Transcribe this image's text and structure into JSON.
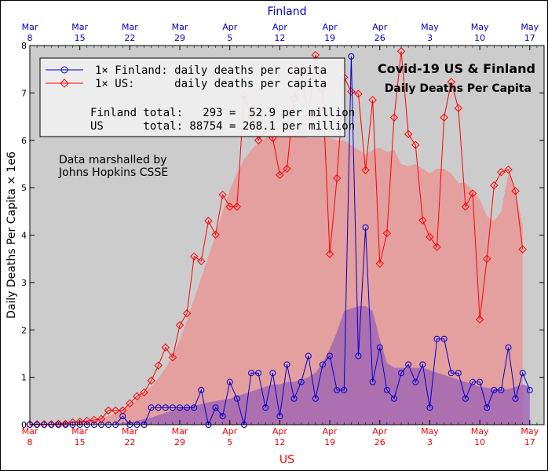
{
  "chart_data": {
    "type": "line",
    "title": "Covid-19 US & Finland",
    "subtitle": "Daily Deaths Per Capita",
    "ylabel": "Daily Deaths Per Capita × 1e6",
    "xlabel_bottom": "US",
    "xlabel_top": "Finland",
    "ylim": [
      0,
      8
    ],
    "yticks": [
      0,
      1,
      2,
      3,
      4,
      5,
      6,
      7,
      8
    ],
    "x_domain": [
      "2020-03-08",
      "2020-05-19"
    ],
    "xticks": [
      {
        "month": "Mar",
        "day": "8",
        "date": "2020-03-08"
      },
      {
        "month": "Mar",
        "day": "15",
        "date": "2020-03-15"
      },
      {
        "month": "Mar",
        "day": "22",
        "date": "2020-03-22"
      },
      {
        "month": "Mar",
        "day": "29",
        "date": "2020-03-29"
      },
      {
        "month": "Apr",
        "day": "5",
        "date": "2020-04-05"
      },
      {
        "month": "Apr",
        "day": "12",
        "date": "2020-04-12"
      },
      {
        "month": "Apr",
        "day": "19",
        "date": "2020-04-19"
      },
      {
        "month": "Apr",
        "day": "26",
        "date": "2020-04-26"
      },
      {
        "month": "May",
        "day": "3",
        "date": "2020-05-03"
      },
      {
        "month": "May",
        "day": "10",
        "date": "2020-05-10"
      },
      {
        "month": "May",
        "day": "17",
        "date": "2020-05-17"
      }
    ],
    "grid": false,
    "legend_position": "top-left",
    "legend": [
      {
        "label": "1× Finland: daily deaths per capita",
        "color": "#0000cc",
        "marker": "circle"
      },
      {
        "label": "1× US:      daily deaths per capita",
        "color": "#ff0000",
        "marker": "diamond"
      }
    ],
    "totals": [
      "Finland total:   293 =  52.9 per million",
      "US      total: 88754 = 268.1 per million"
    ],
    "annotation": [
      "Data marshalled by",
      "Johns Hopkins CSSE"
    ],
    "series": [
      {
        "country": "Finland",
        "color": "#0000cc",
        "start_date": "2020-03-08",
        "values": [
          0,
          0,
          0,
          0,
          0,
          0,
          0,
          0,
          0,
          0,
          0,
          0,
          0,
          0.18,
          0,
          0,
          0,
          0.36,
          0.36,
          0.36,
          0.36,
          0.36,
          0.36,
          0.36,
          0.73,
          0,
          0.36,
          0.18,
          0.9,
          0.55,
          0,
          1.09,
          1.09,
          0.36,
          1.09,
          0.18,
          1.27,
          0.55,
          0.9,
          1.45,
          0.55,
          1.27,
          1.45,
          0.73,
          0.73,
          7.77,
          1.45,
          4.16,
          0.9,
          1.63,
          0.73,
          0.55,
          1.09,
          1.27,
          0.9,
          1.27,
          0.36,
          1.81,
          1.81,
          1.09,
          1.09,
          0.55,
          0.9,
          0.9,
          0.36,
          0.73,
          0.73,
          1.63,
          0.55,
          1.09,
          0.73
        ]
      },
      {
        "country": "US",
        "color": "#ff0000",
        "start_date": "2020-03-08",
        "values": [
          0.01,
          0.01,
          0.01,
          0.01,
          0.02,
          0.02,
          0.05,
          0.06,
          0.08,
          0.1,
          0.12,
          0.3,
          0.3,
          0.3,
          0.45,
          0.6,
          0.68,
          0.93,
          1.25,
          1.63,
          1.42,
          2.1,
          2.35,
          3.55,
          3.45,
          4.3,
          4.01,
          4.85,
          4.6,
          4.6,
          6.95,
          6.5,
          6.0,
          6.25,
          6.05,
          5.27,
          5.4,
          6.88,
          7.45,
          6.5,
          7.8,
          7.08,
          3.6,
          5.2,
          7.33,
          7.03,
          6.98,
          5.37,
          6.85,
          3.4,
          4.04,
          6.48,
          7.88,
          6.13,
          5.9,
          4.31,
          3.96,
          3.75,
          6.48,
          7.23,
          6.68,
          4.6,
          4.88,
          2.22,
          3.5,
          5.05,
          5.33,
          5.38,
          4.93,
          3.7
        ]
      }
    ],
    "bands": [
      {
        "country": "US",
        "fill": "#e79a9a",
        "values": [
          0,
          0,
          0,
          0,
          0,
          0,
          0.02,
          0.04,
          0.06,
          0.09,
          0.13,
          0.18,
          0.25,
          0.33,
          0.42,
          0.53,
          0.66,
          0.81,
          0.98,
          1.2,
          1.45,
          1.8,
          2.2,
          2.65,
          3.1,
          3.55,
          4.0,
          4.5,
          4.95,
          5.3,
          5.6,
          5.8,
          5.95,
          6.05,
          6.1,
          6.1,
          6.12,
          6.1,
          6.08,
          6.05,
          6.05,
          6.05,
          6.05,
          6.0,
          6.0,
          5.9,
          5.8,
          5.7,
          5.8,
          5.85,
          5.75,
          5.8,
          5.5,
          5.45,
          5.5,
          5.4,
          5.3,
          5.4,
          5.4,
          5.3,
          5.1,
          5.1,
          4.95,
          4.75,
          4.4,
          4.3,
          4.5,
          5.3,
          4.9,
          4.2
        ]
      },
      {
        "country": "Finland",
        "fill": "#9a5fb6",
        "values": [
          0,
          0,
          0,
          0,
          0,
          0,
          0,
          0,
          0,
          0,
          0,
          0,
          0,
          0.05,
          0.05,
          0.08,
          0.12,
          0.15,
          0.2,
          0.25,
          0.3,
          0.35,
          0.38,
          0.4,
          0.43,
          0.47,
          0.5,
          0.52,
          0.55,
          0.6,
          0.65,
          0.7,
          0.75,
          0.8,
          0.85,
          0.85,
          0.9,
          0.9,
          0.95,
          1.0,
          1.1,
          1.3,
          1.6,
          1.95,
          2.4,
          2.45,
          2.5,
          2.5,
          2.4,
          1.8,
          1.3,
          1.2,
          1.2,
          1.2,
          1.2,
          1.2,
          1.15,
          1.1,
          1.05,
          1.0,
          0.95,
          0.9,
          0.85,
          0.8,
          0.78,
          0.75,
          0.75,
          0.75,
          0.8,
          0.85,
          0.8
        ]
      }
    ],
    "colors": {
      "plot_background": "#cccccc",
      "finland": "#0000cc",
      "us": "#ff0000",
      "finland_axis_text": "#0000cc",
      "us_axis_text": "#ff0000"
    }
  }
}
